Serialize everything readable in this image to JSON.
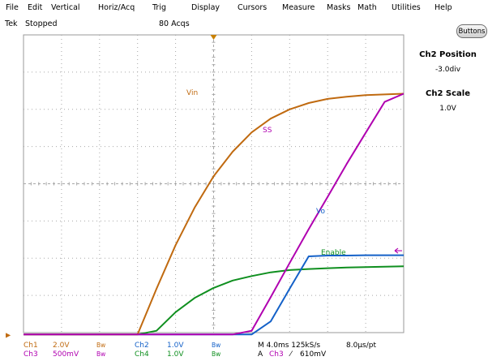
{
  "menu": [
    "File",
    "Edit",
    "Vertical",
    "Horiz/Acq",
    "Trig",
    "Display",
    "Cursors",
    "Measure",
    "Masks",
    "Math",
    "Utilities",
    "Help"
  ],
  "status": {
    "brand": "Tek",
    "state": "Stopped",
    "acqs": "80 Acqs"
  },
  "buttons_label": "Buttons",
  "side_panel": {
    "pos_title": "Ch2 Position",
    "pos_value": "-3.0div",
    "scale_title": "Ch2 Scale",
    "scale_value": "1.0V"
  },
  "trace_labels": {
    "vin": "Vin",
    "ss": "SS",
    "vo": "Vo",
    "enable": "Enable"
  },
  "colors": {
    "ch1": "#c06a10",
    "ch2": "#1461c8",
    "ch3": "#b000b0",
    "ch4": "#0f8f1f",
    "grid": "#a8a8a8",
    "trigger": "#c88000"
  },
  "readout": {
    "ch1": {
      "name": "Ch1",
      "scale": "2.0V",
      "bw": "Bw"
    },
    "ch2": {
      "name": "Ch2",
      "scale": "1.0V",
      "bw": "Bw"
    },
    "ch3": {
      "name": "Ch3",
      "scale": "500mV",
      "bw": "Bw"
    },
    "ch4": {
      "name": "Ch4",
      "scale": "1.0V",
      "bw": "Bw"
    },
    "timebase": "M 4.0ms 125kS/s",
    "pt": "8.0µs/pt",
    "trig_prefix": "A",
    "trig_ch": "Ch3",
    "trig_slope": "⁄",
    "trig_level": "610mV"
  },
  "chart_data": {
    "type": "line",
    "x": [
      0,
      0.5,
      1,
      1.5,
      2,
      2.5,
      3,
      3.5,
      4,
      4.5,
      5,
      5.5,
      6,
      6.5,
      7,
      7.5,
      8,
      8.5,
      9,
      9.5,
      10
    ],
    "series": [
      {
        "name": "Vin",
        "channel": "Ch1",
        "values": [
          -0.05,
          -0.05,
          -0.05,
          -0.05,
          -0.05,
          -0.05,
          -0.05,
          1.18,
          2.35,
          3.36,
          4.2,
          4.86,
          5.38,
          5.75,
          6.0,
          6.17,
          6.28,
          6.34,
          6.38,
          6.4,
          6.42
        ]
      },
      {
        "name": "SS",
        "channel": "Ch3",
        "values": [
          -0.05,
          -0.05,
          -0.05,
          -0.05,
          -0.05,
          -0.05,
          -0.05,
          -0.05,
          -0.05,
          -0.05,
          -0.05,
          -0.05,
          0.05,
          0.95,
          1.87,
          2.78,
          3.65,
          4.53,
          5.37,
          6.2,
          6.42
        ]
      },
      {
        "name": "Vo",
        "channel": "Ch2",
        "values": [
          -0.05,
          -0.05,
          -0.05,
          -0.05,
          -0.05,
          -0.05,
          -0.05,
          -0.05,
          -0.05,
          -0.05,
          -0.05,
          -0.05,
          -0.05,
          0.3,
          1.18,
          2.05,
          2.07,
          2.07,
          2.08,
          2.08,
          2.08
        ]
      },
      {
        "name": "Enable",
        "channel": "Ch4",
        "values": [
          -0.05,
          -0.05,
          -0.05,
          -0.05,
          -0.05,
          -0.05,
          -0.05,
          0.05,
          0.55,
          0.93,
          1.2,
          1.4,
          1.52,
          1.62,
          1.68,
          1.71,
          1.73,
          1.75,
          1.76,
          1.77,
          1.78
        ]
      }
    ],
    "xlim": [
      0,
      10
    ],
    "ylim": [
      0,
      8
    ],
    "grid": true
  }
}
